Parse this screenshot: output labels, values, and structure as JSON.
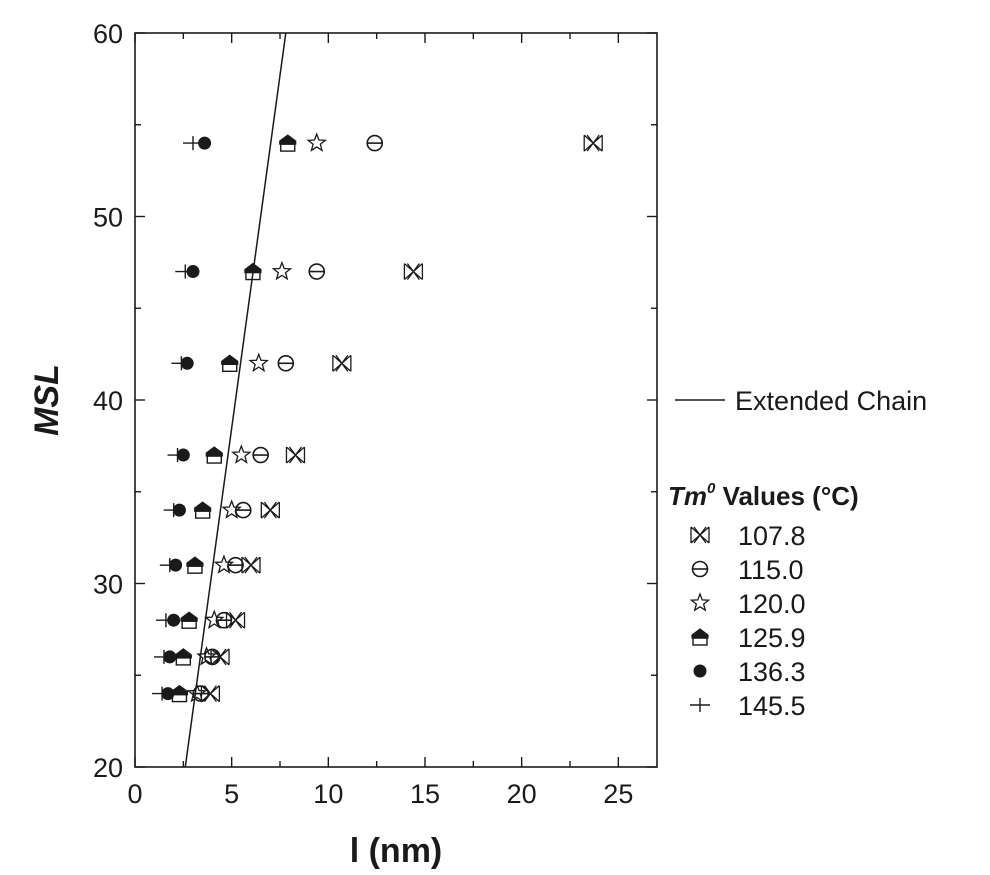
{
  "chart_data": {
    "type": "scatter",
    "xlabel": "l (nm)",
    "ylabel": "MSL",
    "xlim": [
      0,
      27
    ],
    "ylim": [
      20,
      60
    ],
    "xticks": [
      "0",
      "5",
      "10",
      "15",
      "20",
      "25"
    ],
    "yticks": [
      "20",
      "30",
      "40",
      "50",
      "60"
    ],
    "grid": false,
    "legend_position": "right",
    "legend_title": {
      "main": "Tm",
      "superscript": "0",
      "rest": " Values (°C)"
    },
    "series": [
      {
        "name": "107.8",
        "marker": "bowtie-x",
        "points": [
          [
            3.9,
            24
          ],
          [
            4.4,
            26
          ],
          [
            5.2,
            28
          ],
          [
            6.0,
            31
          ],
          [
            7.0,
            34
          ],
          [
            8.3,
            37
          ],
          [
            10.7,
            42
          ],
          [
            14.4,
            47
          ],
          [
            23.7,
            54
          ]
        ]
      },
      {
        "name": "115.0",
        "marker": "circle-bar",
        "points": [
          [
            3.4,
            24
          ],
          [
            4.0,
            26
          ],
          [
            4.6,
            28
          ],
          [
            5.2,
            31
          ],
          [
            5.6,
            34
          ],
          [
            6.5,
            37
          ],
          [
            7.8,
            42
          ],
          [
            9.4,
            47
          ],
          [
            12.4,
            54
          ]
        ]
      },
      {
        "name": "120.0",
        "marker": "star",
        "points": [
          [
            3.2,
            24
          ],
          [
            3.7,
            26
          ],
          [
            4.1,
            28
          ],
          [
            4.6,
            31
          ],
          [
            5.0,
            34
          ],
          [
            5.5,
            37
          ],
          [
            6.4,
            42
          ],
          [
            7.6,
            47
          ],
          [
            9.4,
            54
          ]
        ]
      },
      {
        "name": "125.9",
        "marker": "house",
        "points": [
          [
            2.3,
            24
          ],
          [
            2.5,
            26
          ],
          [
            2.8,
            28
          ],
          [
            3.1,
            31
          ],
          [
            3.5,
            34
          ],
          [
            4.1,
            37
          ],
          [
            4.9,
            42
          ],
          [
            6.1,
            47
          ],
          [
            7.9,
            54
          ]
        ]
      },
      {
        "name": "136.3",
        "marker": "filled-circle",
        "points": [
          [
            1.7,
            24
          ],
          [
            1.8,
            26
          ],
          [
            2.0,
            28
          ],
          [
            2.1,
            31
          ],
          [
            2.3,
            34
          ],
          [
            2.5,
            37
          ],
          [
            2.7,
            42
          ],
          [
            3.0,
            47
          ],
          [
            3.6,
            54
          ]
        ]
      },
      {
        "name": "145.5",
        "marker": "plus",
        "points": [
          [
            1.4,
            24
          ],
          [
            1.5,
            26
          ],
          [
            1.6,
            28
          ],
          [
            1.8,
            31
          ],
          [
            2.0,
            34
          ],
          [
            2.2,
            37
          ],
          [
            2.4,
            42
          ],
          [
            2.6,
            47
          ],
          [
            3.0,
            54
          ]
        ]
      }
    ],
    "lines": [
      {
        "name": "Extended Chain",
        "points": [
          [
            2.6,
            20
          ],
          [
            7.8,
            60
          ]
        ]
      }
    ]
  }
}
